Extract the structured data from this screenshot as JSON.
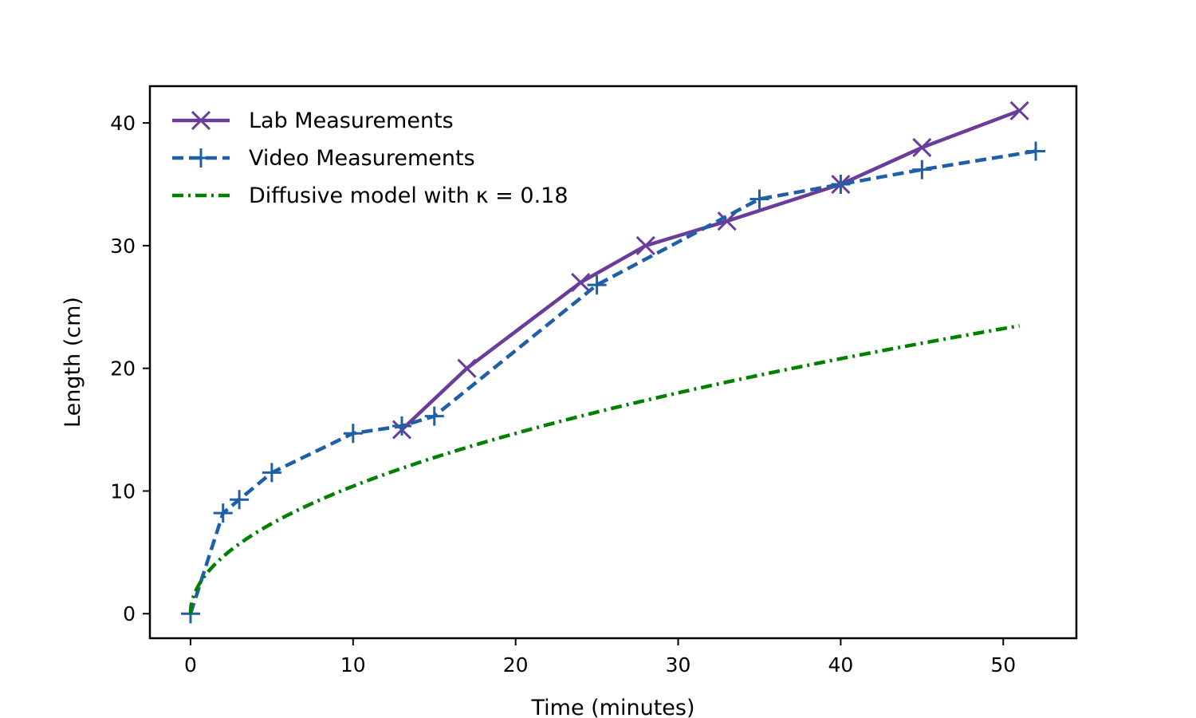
{
  "chart_data": {
    "type": "line",
    "title": "",
    "xlabel": "Time (minutes)",
    "ylabel": "Length (cm)",
    "xlim": [
      -2.5,
      54.5
    ],
    "ylim": [
      -2,
      43
    ],
    "xticks": [
      0,
      10,
      20,
      30,
      40,
      50
    ],
    "yticks": [
      0,
      10,
      20,
      30,
      40
    ],
    "grid": false,
    "legend_position": "top-left",
    "series": [
      {
        "name": "Lab Measurements",
        "color": "#6a3d9a",
        "linestyle": "solid",
        "marker": "x",
        "x": [
          13,
          17,
          24,
          28,
          33,
          40,
          45,
          51
        ],
        "y": [
          15,
          20,
          27,
          30,
          32,
          35,
          38,
          41
        ]
      },
      {
        "name": "Video Measurements",
        "color": "#1f5fa6",
        "linestyle": "dashed",
        "marker": "+",
        "x": [
          0,
          2,
          3,
          5,
          10,
          13,
          15,
          25,
          35,
          40,
          45,
          52
        ],
        "y": [
          0,
          8.2,
          9.3,
          11.5,
          14.7,
          15.3,
          16.1,
          26.8,
          33.8,
          35.0,
          36.2,
          37.7
        ]
      },
      {
        "name": "Diffusive model with",
        "name_math": "κ = 0.18",
        "color": "#008000",
        "linestyle": "dashdot",
        "marker": "none",
        "kappa": 0.18,
        "x_range": [
          0,
          51
        ]
      }
    ]
  }
}
